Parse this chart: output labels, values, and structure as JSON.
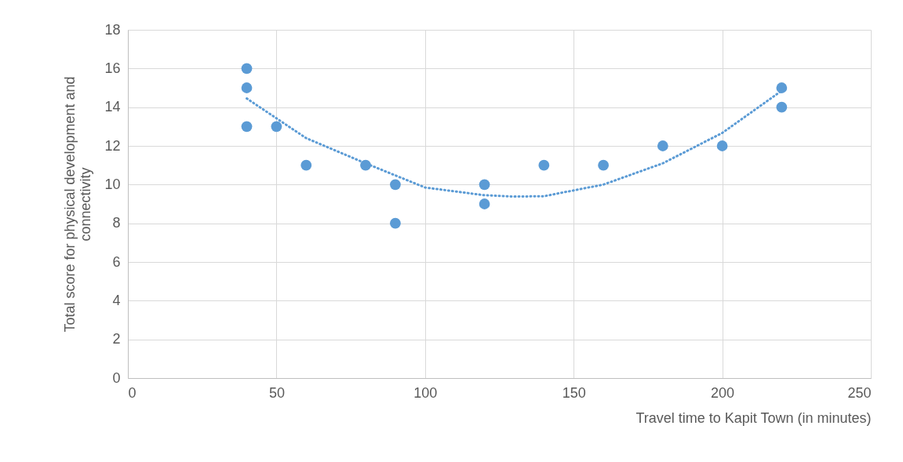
{
  "chart_data": {
    "type": "scatter",
    "xlabel": "Travel time to Kapit Town (in minutes)",
    "ylabel": "Total score for physical development and connectivity",
    "xlim": [
      0,
      250
    ],
    "xticks": [
      0,
      50,
      100,
      150,
      200,
      250
    ],
    "ylim": [
      0,
      18
    ],
    "yticks": [
      0,
      2,
      4,
      6,
      8,
      10,
      12,
      14,
      16,
      18
    ],
    "grid": true,
    "series": [
      {
        "type": "scatter",
        "color": "#5b9bd5",
        "marker": "circle",
        "x": [
          40,
          40,
          40,
          50,
          60,
          80,
          90,
          90,
          120,
          120,
          140,
          160,
          180,
          200,
          220,
          220
        ],
        "values": [
          16,
          15,
          13,
          13,
          11,
          11,
          10,
          8,
          10,
          9,
          11,
          11,
          12,
          12,
          15,
          14
        ]
      },
      {
        "type": "line",
        "color": "#5b9bd5",
        "marker": "none",
        "line_style": "dotted",
        "x": [
          40,
          60,
          80,
          100,
          120,
          130,
          140,
          160,
          180,
          200,
          220
        ],
        "values": [
          14.45,
          12.4,
          11.1,
          9.85,
          9.45,
          9.38,
          9.4,
          10.0,
          11.1,
          12.67,
          14.85
        ]
      }
    ]
  }
}
